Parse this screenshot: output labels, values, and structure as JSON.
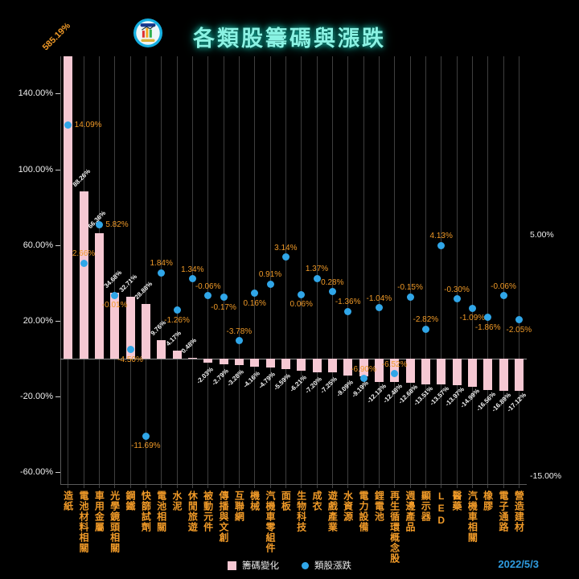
{
  "title": "各類股籌碼與漲跌",
  "date": "2022/5/3",
  "icons": {
    "logo": "stock-chart-logo"
  },
  "legend": {
    "bar": "籌碼變化",
    "dot": "類股漲跌"
  },
  "chart_data": {
    "type": "bar",
    "subtype": "bar-and-scatter-combo",
    "title": "各類股籌碼與漲跌",
    "xlabel": "",
    "categories": [
      "造紙",
      "電池材料相關",
      "車用金屬",
      "光學鏡頭相關",
      "鋼鐵",
      "快篩試劑",
      "電池相關",
      "水泥",
      "休閒旅遊",
      "被動元件",
      "傳播與文創",
      "互聯網",
      "機械",
      "汽機車零組件",
      "面板",
      "生物科技",
      "成衣",
      "遊戲產業",
      "水資源",
      "電力設備",
      "鋰電池",
      "再生循環概念股",
      "週邊產品",
      "顯示器",
      "LED",
      "醫藥",
      "汽機車相關",
      "橡膠",
      "電子通路",
      "營造建材"
    ],
    "series": [
      {
        "name": "籌碼變化",
        "kind": "bar",
        "axis": "left",
        "values": [
          585.19,
          88.26,
          66.36,
          34.68,
          32.71,
          28.88,
          9.76,
          4.17,
          0.48,
          -2.03,
          -2.79,
          -3.28,
          -4.16,
          -4.79,
          -5.59,
          -6.21,
          -7.2,
          -7.25,
          -9.09,
          -9.19,
          -12.13,
          -12.48,
          -12.68,
          -13.51,
          -13.57,
          -13.97,
          -14.99,
          -16.56,
          -16.89,
          -17.12
        ]
      },
      {
        "name": "類股漲跌",
        "kind": "scatter",
        "axis": "right",
        "values": [
          14.09,
          2.66,
          5.82,
          -0.01,
          -4.5,
          -11.69,
          1.84,
          -1.26,
          1.34,
          -0.06,
          -0.17,
          -3.78,
          0.16,
          0.91,
          3.14,
          0.06,
          1.37,
          0.28,
          -1.36,
          -6.9,
          -1.04,
          -6.52,
          -0.15,
          -2.82,
          4.13,
          -0.3,
          -1.09,
          -1.86,
          -0.06,
          -2.05
        ]
      }
    ],
    "left_axis": {
      "ticks": [
        140,
        100,
        60,
        20,
        -20,
        -60
      ],
      "unit": "%",
      "range": [
        -66,
        160
      ]
    },
    "right_axis": {
      "ticks": [
        5,
        -15
      ],
      "unit": "%",
      "range": [
        -15.7,
        19.8
      ]
    },
    "grid": "vertical-per-category",
    "legend_position": "bottom-center"
  },
  "colors": {
    "background": "#000000",
    "title": "#8af2e3",
    "bar": "#f6c8d3",
    "dot": "#30a6e8",
    "dot_label": "#f09a28",
    "category_label": "#f09a28",
    "bar_label": "#f2f2f2",
    "axis_label": "#eeeeee",
    "date": "#2f9ce0",
    "grid": "#3f3f3f"
  }
}
